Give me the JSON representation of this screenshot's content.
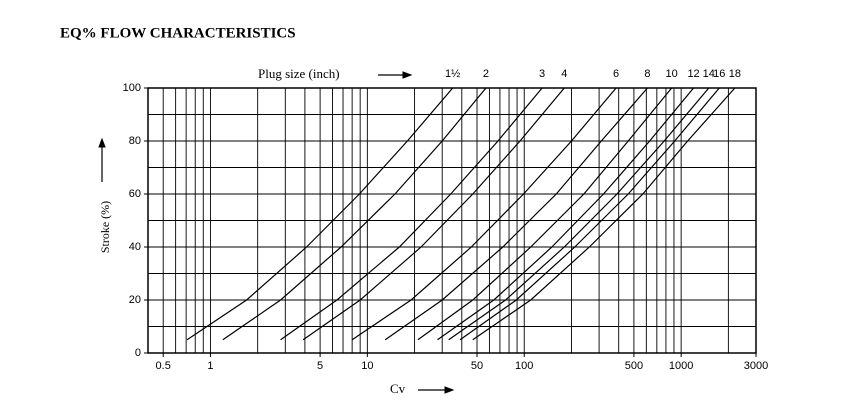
{
  "chart_data": {
    "type": "line",
    "title": "EQ% FLOW CHARACTERISTICS",
    "annotation": "Plug size (inch)",
    "x_label": "Cv",
    "y_label": "Stroke (%)",
    "xscale": "log",
    "xlim": [
      0.4,
      3000
    ],
    "xticks": [
      0.5,
      1,
      5,
      10,
      50,
      100,
      500,
      1000,
      3000
    ],
    "xgrid": [
      0.5,
      0.6,
      0.7,
      0.8,
      0.9,
      1,
      2,
      3,
      4,
      5,
      6,
      7,
      8,
      9,
      10,
      20,
      30,
      40,
      50,
      60,
      70,
      80,
      90,
      100,
      200,
      300,
      400,
      500,
      600,
      700,
      800,
      900,
      1000,
      2000
    ],
    "ylim": [
      0,
      100
    ],
    "yticks": [
      0,
      20,
      40,
      60,
      80,
      100
    ],
    "ygrid": [
      10,
      20,
      30,
      40,
      50,
      60,
      70,
      80,
      90,
      100
    ],
    "color": "#000000",
    "series": [
      {
        "name": "1½",
        "x": [
          0.71,
          1.7,
          4.1,
          8.9,
          18,
          35
        ],
        "values": [
          5,
          20,
          40,
          60,
          80,
          100
        ]
      },
      {
        "name": "2",
        "x": [
          1.2,
          2.8,
          6.8,
          15,
          30,
          57
        ],
        "values": [
          5,
          20,
          40,
          60,
          80,
          100
        ]
      },
      {
        "name": "3",
        "x": [
          2.8,
          6.4,
          16,
          34,
          68,
          130
        ],
        "values": [
          5,
          20,
          40,
          60,
          80,
          100
        ]
      },
      {
        "name": "4",
        "x": [
          3.9,
          9,
          22,
          47,
          94,
          180
        ],
        "values": [
          5,
          20,
          40,
          60,
          80,
          100
        ]
      },
      {
        "name": "6",
        "x": [
          8,
          19,
          46,
          99,
          200,
          385
        ],
        "values": [
          5,
          20,
          40,
          60,
          80,
          100
        ]
      },
      {
        "name": "8",
        "x": [
          13,
          30,
          73,
          160,
          310,
          610
        ],
        "values": [
          5,
          20,
          40,
          60,
          80,
          100
        ]
      },
      {
        "name": "10",
        "x": [
          21,
          47,
          110,
          240,
          460,
          870
        ],
        "values": [
          5,
          20,
          40,
          60,
          80,
          100
        ]
      },
      {
        "name": "12",
        "x": [
          28,
          64,
          150,
          320,
          630,
          1200
        ],
        "values": [
          5,
          20,
          40,
          60,
          80,
          100
        ]
      },
      {
        "name": "14",
        "x": [
          33,
          76,
          180,
          390,
          780,
          1500
        ],
        "values": [
          5,
          20,
          40,
          60,
          80,
          100
        ]
      },
      {
        "name": "16",
        "x": [
          39,
          89,
          210,
          460,
          910,
          1750
        ],
        "values": [
          5,
          20,
          40,
          60,
          80,
          100
        ]
      },
      {
        "name": "18",
        "x": [
          47,
          110,
          260,
          570,
          1100,
          2200
        ],
        "values": [
          5,
          20,
          40,
          60,
          80,
          100
        ]
      }
    ]
  }
}
